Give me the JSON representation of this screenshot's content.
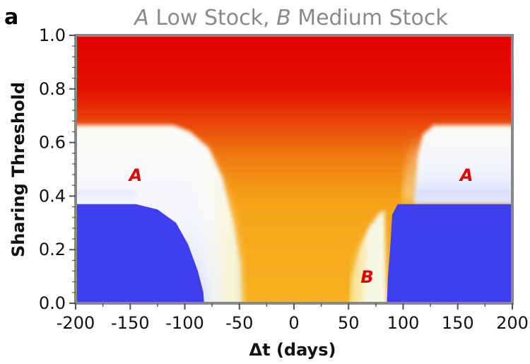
{
  "panel_label": "a",
  "chart_data": {
    "type": "heatmap",
    "title_parts": [
      {
        "text": "A",
        "italic": true
      },
      {
        "text": " Low Stock, ",
        "italic": false
      },
      {
        "text": "B",
        "italic": true
      },
      {
        "text": " Medium Stock",
        "italic": false
      }
    ],
    "xlabel": "Δt (days)",
    "ylabel": "Sharing Threshold",
    "xlim": [
      -200,
      200
    ],
    "ylim": [
      0.0,
      1.0
    ],
    "x_ticks": [
      -200,
      -150,
      -100,
      -50,
      0,
      50,
      100,
      150,
      200
    ],
    "x_tick_labels": [
      "-200",
      "-150",
      "-100",
      "-50",
      "0",
      "50",
      "100",
      "150",
      "200"
    ],
    "y_ticks": [
      0.0,
      0.2,
      0.4,
      0.6,
      0.8,
      1.0
    ],
    "y_tick_labels": [
      "0.0",
      "0.2",
      "0.4",
      "0.6",
      "0.8",
      "1.0"
    ],
    "colors": {
      "low": "#3f3ff0",
      "mid": "#f6f8ff",
      "warm": "#f6a015",
      "high": "#e00000",
      "annotation": "#e00000",
      "title": "#8a8a8a",
      "frame": "#888888"
    },
    "annotations": [
      {
        "text": "A",
        "x": -145,
        "y": 0.48
      },
      {
        "text": "A",
        "x": 158,
        "y": 0.48
      },
      {
        "text": "B",
        "x": 67,
        "y": 0.1
      }
    ]
  }
}
